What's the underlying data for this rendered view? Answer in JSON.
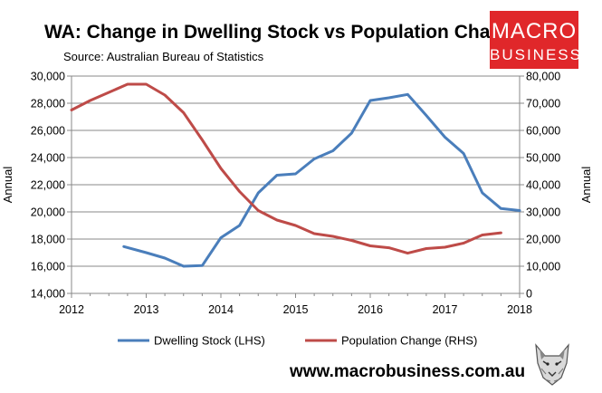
{
  "header": {
    "title": "WA: Change in Dwelling Stock vs Population Change",
    "source": "Source: Australian Bureau of Statistics"
  },
  "logo": {
    "line1": "MACRO",
    "line2": "BUSINESS",
    "color": "#e0272a"
  },
  "footer": {
    "website": "www.macrobusiness.com.au"
  },
  "chart_data": {
    "type": "line",
    "grid": true,
    "legend_position": "bottom",
    "x_ticks": [
      "2012",
      "2013",
      "2014",
      "2015",
      "2016",
      "2017",
      "2018"
    ],
    "x_range": [
      2012,
      2018
    ],
    "y_left": {
      "label": "Annual",
      "range": [
        14000,
        30000
      ],
      "ticks": [
        "14,000",
        "16,000",
        "18,000",
        "20,000",
        "22,000",
        "24,000",
        "26,000",
        "28,000",
        "30,000"
      ]
    },
    "y_right": {
      "label": "Annual",
      "range": [
        0,
        80000
      ],
      "ticks": [
        "0",
        "10,000",
        "20,000",
        "30,000",
        "40,000",
        "50,000",
        "60,000",
        "70,000",
        "80,000"
      ]
    },
    "series": [
      {
        "name": "Dwelling Stock (LHS)",
        "axis": "left",
        "color": "#4a7ebb",
        "x": [
          2012.7,
          2013.0,
          2013.25,
          2013.5,
          2013.75,
          2014.0,
          2014.25,
          2014.5,
          2014.75,
          2015.0,
          2015.25,
          2015.5,
          2015.75,
          2016.0,
          2016.25,
          2016.5,
          2016.75,
          2017.0,
          2017.25,
          2017.5,
          2017.75,
          2018.0
        ],
        "values": [
          17450,
          17000,
          16600,
          16000,
          16050,
          18100,
          19000,
          21400,
          22700,
          22800,
          23900,
          24500,
          25800,
          28200,
          28400,
          28650,
          27100,
          25500,
          24300,
          21400,
          20250,
          20100
        ]
      },
      {
        "name": "Population Change (RHS)",
        "axis": "right",
        "color": "#be4b48",
        "x": [
          2012.0,
          2012.25,
          2012.5,
          2012.75,
          2013.0,
          2013.25,
          2013.5,
          2013.75,
          2014.0,
          2014.25,
          2014.5,
          2014.75,
          2015.0,
          2015.25,
          2015.5,
          2015.75,
          2016.0,
          2016.25,
          2016.5,
          2016.75,
          2017.0,
          2017.25,
          2017.5,
          2017.75
        ],
        "values": [
          67500,
          71000,
          74000,
          77000,
          77000,
          73000,
          66500,
          56500,
          46000,
          37500,
          30500,
          27000,
          25000,
          22000,
          21000,
          19500,
          17500,
          16800,
          14800,
          16500,
          17000,
          18500,
          21500,
          22300
        ]
      }
    ]
  }
}
